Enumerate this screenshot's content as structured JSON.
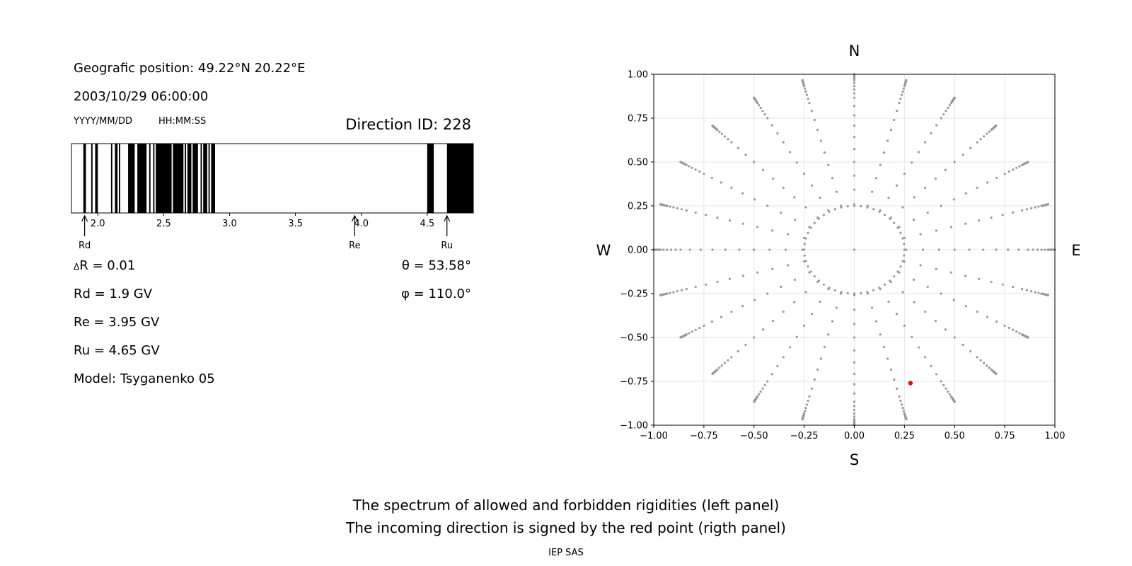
{
  "left_panel": {
    "geo_position": "Geografic position: 49.22°N 20.22°E",
    "datetime": "2003/10/29 06:00:00",
    "date_format": "YYYY/MM/DD",
    "time_format": "HH:MM:SS",
    "direction_id": "Direction ID: 228",
    "delta_r": "R = 0.01",
    "delta_symbol": "Δ",
    "rd": "Rd = 1.9 GV",
    "re": "Re = 3.95 GV",
    "ru": "Ru = 4.65 GV",
    "model": "Model: Tsyganenko 05",
    "theta": "θ = 53.58°",
    "phi": "φ = 110.0°"
  },
  "footer": {
    "caption_line1": "The spectrum of allowed and forbidden rigidities (left panel)",
    "caption_line2": "The incoming direction is signed by the red point (rigth panel)",
    "institution": "IEP SAS"
  },
  "chart_data": [
    {
      "type": "bar",
      "name": "rigidity-spectrum",
      "xlim": [
        1.8,
        4.85
      ],
      "xticks": [
        2.0,
        2.5,
        3.0,
        3.5,
        4.0,
        4.5
      ],
      "xtick_labels": [
        "2.0",
        "2.5",
        "3.0",
        "3.5",
        "4.0",
        "4.5"
      ],
      "forbidden_bands": [
        [
          1.89,
          1.91
        ],
        [
          1.95,
          1.96
        ],
        [
          1.98,
          2.0
        ],
        [
          2.1,
          2.11
        ],
        [
          2.13,
          2.15
        ],
        [
          2.16,
          2.17
        ],
        [
          2.23,
          2.28
        ],
        [
          2.3,
          2.37
        ],
        [
          2.39,
          2.4
        ],
        [
          2.42,
          2.43
        ],
        [
          2.44,
          2.56
        ],
        [
          2.57,
          2.65
        ],
        [
          2.66,
          2.67
        ],
        [
          2.68,
          2.71
        ],
        [
          2.72,
          2.76
        ],
        [
          2.78,
          2.79
        ],
        [
          2.8,
          2.83
        ],
        [
          2.84,
          2.85
        ],
        [
          2.86,
          2.89
        ],
        [
          4.5,
          4.55
        ],
        [
          4.65,
          4.85
        ]
      ],
      "markers": [
        {
          "label": "Rd",
          "value": 1.9
        },
        {
          "label": "Re",
          "value": 3.95
        },
        {
          "label": "Ru",
          "value": 4.65
        }
      ],
      "colors": {
        "forbidden": "#000000",
        "allowed": "#ffffff"
      }
    },
    {
      "type": "scatter",
      "name": "asymptotic-directions",
      "xlim": [
        -1.0,
        1.0
      ],
      "ylim": [
        -1.0,
        1.0
      ],
      "xticks": [
        -1.0,
        -0.75,
        -0.5,
        -0.25,
        0.0,
        0.25,
        0.5,
        0.75,
        1.0
      ],
      "yticks": [
        -1.0,
        -0.75,
        -0.5,
        -0.25,
        0.0,
        0.25,
        0.5,
        0.75,
        1.0
      ],
      "xtick_labels": [
        "−1.00",
        "−0.75",
        "−0.50",
        "−0.25",
        "0.00",
        "0.25",
        "0.50",
        "0.75",
        "1.00"
      ],
      "ytick_labels": [
        "−1.00",
        "−0.75",
        "−0.50",
        "−0.25",
        "0.00",
        "0.25",
        "0.50",
        "0.75",
        "1.00"
      ],
      "grid": true,
      "compass": {
        "north": "N",
        "south": "S",
        "east": "E",
        "west": "W"
      },
      "grid_points": {
        "azimuth_step_deg": 15,
        "radii": [
          0.25,
          0.42,
          0.58,
          0.72,
          0.84,
          0.92,
          0.97,
          0.99,
          1.0
        ],
        "extra_radii_dense": true,
        "color": "#999999"
      },
      "highlight_point": {
        "x": 0.28,
        "y": -0.76,
        "color": "#ff0000"
      }
    }
  ]
}
